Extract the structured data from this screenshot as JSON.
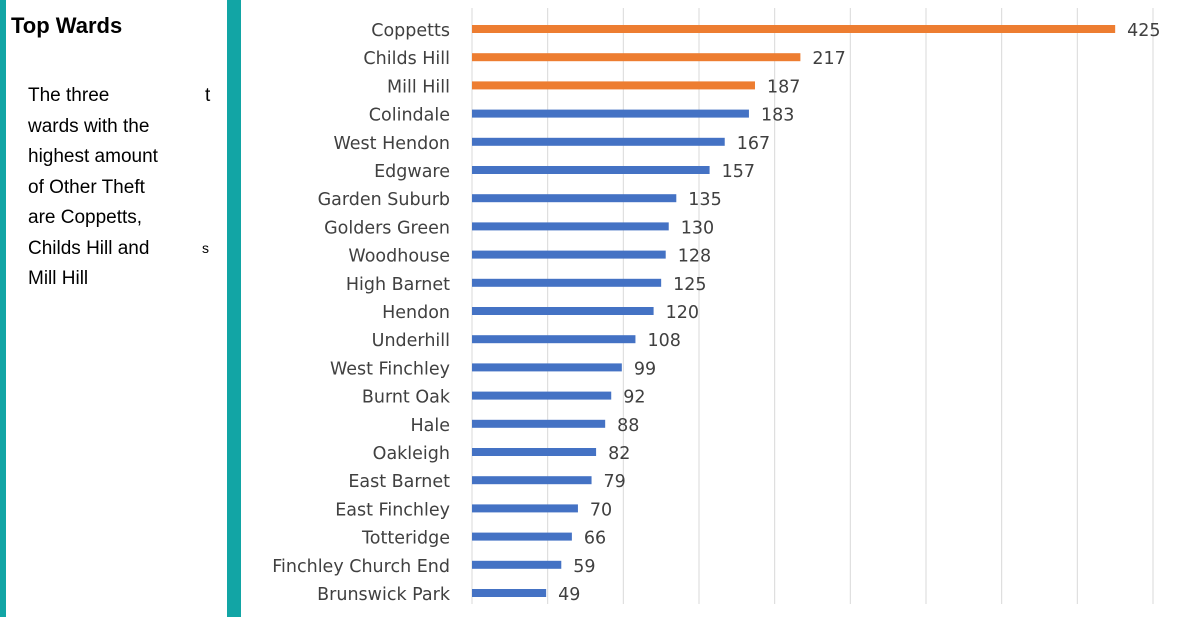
{
  "colors": {
    "accent_teal": "#12a5a5",
    "highlight_bar": "#ed7d31",
    "default_bar": "#4472c4",
    "gridline": "#d9d9d9",
    "label_text": "#404040"
  },
  "panel": {
    "title": "Top Wards",
    "lines": [
      "The three",
      "wards with the",
      "highest amount",
      "of Other Theft",
      "are Coppetts,",
      "Childs Hill and",
      "Mill Hill"
    ],
    "stray_t": "t",
    "stray_s": "s"
  },
  "chart_data": {
    "type": "bar",
    "orientation": "horizontal",
    "title": "",
    "xlabel": "",
    "ylabel": "",
    "xlim": [
      0,
      450
    ],
    "grid": true,
    "legend": "none",
    "categories": [
      "Coppetts",
      "Childs Hill",
      "Mill Hill",
      "Colindale",
      "West Hendon",
      "Edgware",
      "Garden Suburb",
      "Golders Green",
      "Woodhouse",
      "High Barnet",
      "Hendon",
      "Underhill",
      "West Finchley",
      "Burnt Oak",
      "Hale",
      "Oakleigh",
      "East Barnet",
      "East Finchley",
      "Totteridge",
      "Finchley Church End",
      "Brunswick Park"
    ],
    "values": [
      425,
      217,
      187,
      183,
      167,
      157,
      135,
      130,
      128,
      125,
      120,
      108,
      99,
      92,
      88,
      82,
      79,
      70,
      66,
      59,
      49
    ],
    "highlighted": [
      "Coppetts",
      "Childs Hill",
      "Mill Hill"
    ],
    "data_labels": true
  }
}
